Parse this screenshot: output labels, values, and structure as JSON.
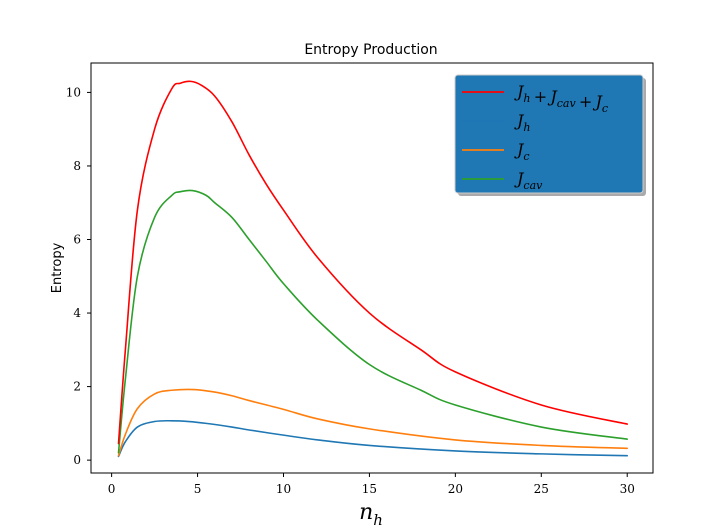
{
  "chart_data": {
    "type": "line",
    "title": "Entropy Production",
    "xlabel": "n_h",
    "ylabel": "Entropy",
    "xlim": [
      -1.2,
      31.5
    ],
    "ylim": [
      -0.35,
      10.8
    ],
    "xticks": [
      0,
      5,
      10,
      15,
      20,
      25,
      30
    ],
    "yticks": [
      0,
      2,
      4,
      6,
      8,
      10
    ],
    "grid": false,
    "legend_position": "top-right",
    "legend_background": "#1f77b4",
    "series": [
      {
        "name": "J_h + J_cav + J_c",
        "color": "#ff0000",
        "x": [
          0.4,
          0.8,
          1.5,
          2.5,
          3.5,
          4.0,
          4.6,
          5.2,
          6.0,
          7.0,
          8.0,
          9.0,
          10.0,
          12.0,
          15.0,
          18.0,
          20.0,
          25.0,
          30.0
        ],
        "y": [
          0.45,
          3.0,
          6.8,
          9.0,
          10.1,
          10.25,
          10.3,
          10.2,
          9.9,
          9.2,
          8.3,
          7.5,
          6.8,
          5.5,
          4.0,
          3.0,
          2.4,
          1.5,
          0.98
        ]
      },
      {
        "name": "J_h",
        "color": "#1f77b4",
        "x": [
          0.4,
          0.8,
          1.5,
          2.5,
          3.5,
          4.5,
          5.5,
          7.0,
          8.0,
          10.0,
          12.0,
          15.0,
          20.0,
          25.0,
          30.0
        ],
        "y": [
          0.1,
          0.5,
          0.9,
          1.05,
          1.07,
          1.05,
          1.0,
          0.9,
          0.82,
          0.68,
          0.55,
          0.4,
          0.25,
          0.17,
          0.12
        ]
      },
      {
        "name": "J_c",
        "color": "#ff7f0e",
        "x": [
          0.4,
          0.8,
          1.5,
          2.5,
          3.5,
          4.8,
          6.0,
          7.0,
          8.0,
          10.0,
          12.0,
          15.0,
          20.0,
          25.0,
          30.0
        ],
        "y": [
          0.12,
          0.7,
          1.4,
          1.8,
          1.9,
          1.92,
          1.85,
          1.75,
          1.62,
          1.38,
          1.12,
          0.85,
          0.55,
          0.4,
          0.32
        ]
      },
      {
        "name": "J_cav",
        "color": "#2ca02c",
        "x": [
          0.4,
          0.8,
          1.5,
          2.5,
          3.5,
          4.0,
          4.7,
          5.5,
          6.0,
          7.0,
          8.0,
          9.0,
          10.0,
          12.0,
          15.0,
          18.0,
          20.0,
          25.0,
          30.0
        ],
        "y": [
          0.2,
          2.2,
          5.0,
          6.6,
          7.2,
          7.3,
          7.33,
          7.2,
          7.0,
          6.6,
          6.0,
          5.4,
          4.8,
          3.8,
          2.6,
          1.9,
          1.5,
          0.9,
          0.57
        ]
      }
    ]
  }
}
